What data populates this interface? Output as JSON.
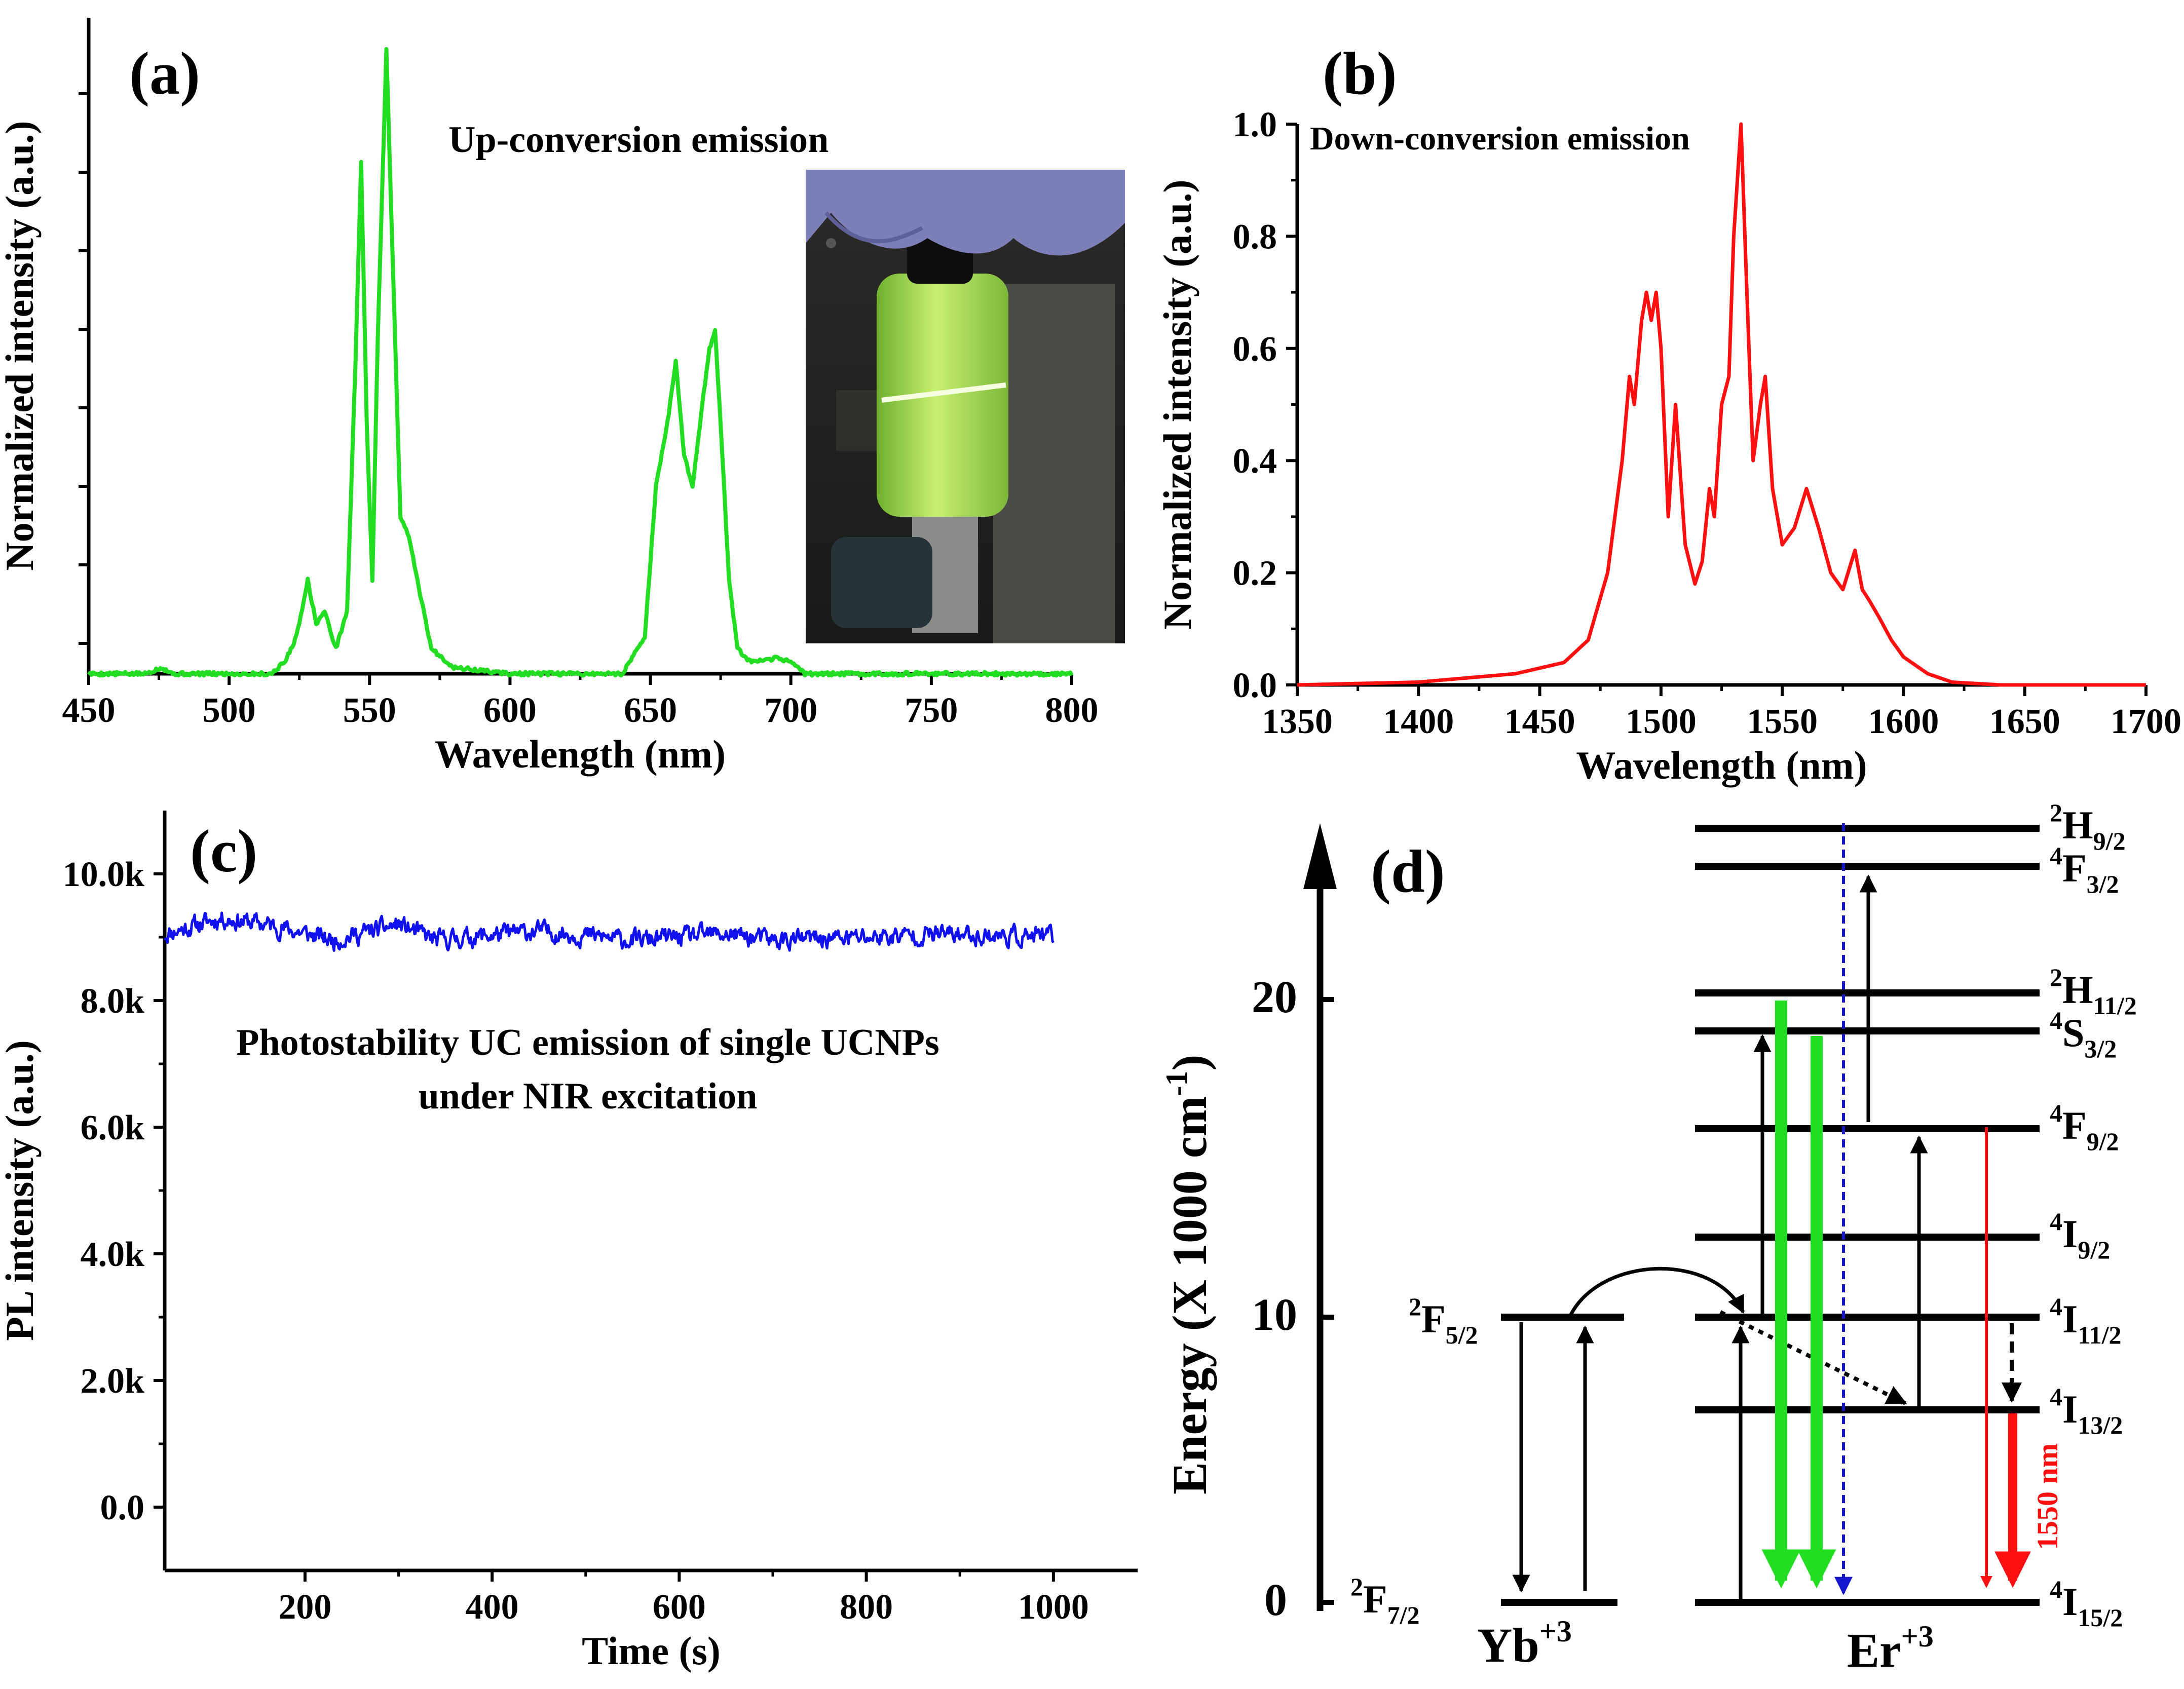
{
  "colors": {
    "green": "#22dd22",
    "red": "#ff1010",
    "blue": "#1111ee",
    "black": "#000000",
    "dark_blue_dash": "#1515cc"
  },
  "chart_data": [
    {
      "id": "a",
      "panel_label": "(a)",
      "type": "line",
      "title": "Up-conversion emission",
      "xlabel": "Wavelength (nm)",
      "ylabel": "Normalized intensity (a.u.)",
      "xlim": [
        450,
        800
      ],
      "ylim": [
        0,
        1.05
      ],
      "xticks": [
        450,
        500,
        550,
        600,
        650,
        700,
        750,
        800
      ],
      "yticks_unlabeled": true,
      "inset": "photo of a glowing green vial held by a gloved hand",
      "series": [
        {
          "name": "UC emission",
          "color": "#22dd22",
          "x": [
            450,
            470,
            476,
            480,
            500,
            515,
            520,
            524,
            528,
            531,
            534,
            538,
            542,
            545,
            547,
            549,
            551,
            553,
            556,
            558,
            561,
            564,
            567,
            572,
            580,
            600,
            640,
            648,
            652,
            656,
            659,
            662,
            665,
            669,
            671,
            673,
            675,
            678,
            681,
            685,
            690,
            695,
            700,
            705,
            720,
            800
          ],
          "y": [
            0.0,
            0.0,
            0.01,
            0.0,
            0.0,
            0.0,
            0.02,
            0.06,
            0.15,
            0.08,
            0.1,
            0.04,
            0.1,
            0.5,
            0.82,
            0.4,
            0.15,
            0.55,
            1.0,
            0.7,
            0.25,
            0.22,
            0.15,
            0.04,
            0.01,
            0.0,
            0.0,
            0.06,
            0.3,
            0.4,
            0.5,
            0.35,
            0.3,
            0.45,
            0.52,
            0.55,
            0.4,
            0.15,
            0.04,
            0.02,
            0.02,
            0.025,
            0.02,
            0.0,
            0.0,
            0.0
          ]
        }
      ]
    },
    {
      "id": "b",
      "panel_label": "(b)",
      "type": "line",
      "title": "Down-conversion emission",
      "xlabel": "Wavelength (nm)",
      "ylabel": "Normalized intensity (a.u.)",
      "xlim": [
        1350,
        1700
      ],
      "ylim": [
        0,
        1.0
      ],
      "xticks": [
        1350,
        1400,
        1450,
        1500,
        1550,
        1600,
        1650,
        1700
      ],
      "yticks": [
        0.0,
        0.2,
        0.4,
        0.6,
        0.8,
        1.0
      ],
      "ytick_labels": [
        "0.0",
        "0.2",
        "0.4",
        "0.6",
        "0.8",
        "1.0"
      ],
      "series": [
        {
          "name": "DC emission",
          "color": "#ff1010",
          "x": [
            1350,
            1400,
            1440,
            1460,
            1470,
            1478,
            1484,
            1487,
            1489,
            1492,
            1494,
            1496,
            1498,
            1500,
            1503,
            1506,
            1510,
            1514,
            1517,
            1520,
            1522,
            1525,
            1528,
            1530,
            1533,
            1535,
            1538,
            1541,
            1543,
            1546,
            1550,
            1555,
            1560,
            1565,
            1570,
            1575,
            1580,
            1583,
            1586,
            1590,
            1595,
            1600,
            1610,
            1620,
            1640,
            1660,
            1700
          ],
          "y": [
            0.0,
            0.005,
            0.02,
            0.04,
            0.08,
            0.2,
            0.4,
            0.55,
            0.5,
            0.65,
            0.7,
            0.65,
            0.7,
            0.6,
            0.3,
            0.5,
            0.25,
            0.18,
            0.22,
            0.35,
            0.3,
            0.5,
            0.55,
            0.8,
            1.0,
            0.75,
            0.4,
            0.5,
            0.55,
            0.35,
            0.25,
            0.28,
            0.35,
            0.28,
            0.2,
            0.17,
            0.24,
            0.17,
            0.15,
            0.12,
            0.08,
            0.05,
            0.02,
            0.005,
            0.0,
            0.0,
            0.0
          ]
        }
      ]
    },
    {
      "id": "c",
      "panel_label": "(c)",
      "type": "line",
      "title_lines": [
        "Photostability UC emission of single UCNPs",
        "under NIR excitation"
      ],
      "xlabel": "Time (s)",
      "ylabel": "PL intensity (a.u.)",
      "xlim": [
        50,
        1090
      ],
      "ylim": [
        -1000,
        11000
      ],
      "xticks": [
        200,
        400,
        600,
        800,
        1000
      ],
      "yticks": [
        0,
        2000,
        4000,
        6000,
        8000,
        10000
      ],
      "ytick_labels": [
        "0.0",
        "2.0k",
        "4.0k",
        "6.0k",
        "8.0k",
        "10.0k"
      ],
      "series": [
        {
          "name": "PL intensity",
          "color": "#1111ee",
          "t_start": 50,
          "t_end": 1000,
          "baseline": [
            [
              50,
              9050
            ],
            [
              110,
              9300
            ],
            [
              160,
              9200
            ],
            [
              230,
              8950
            ],
            [
              300,
              9200
            ],
            [
              340,
              8950
            ],
            [
              450,
              9100
            ],
            [
              550,
              8950
            ],
            [
              650,
              9050
            ],
            [
              700,
              8950
            ],
            [
              800,
              9000
            ],
            [
              880,
              9050
            ],
            [
              1000,
              9000
            ]
          ],
          "noise_amplitude": 120,
          "noise_seed": 11
        }
      ]
    }
  ],
  "diagram": {
    "panel_label": "(d)",
    "ylabel": "Energy (X 1000 cm",
    "ylabel_sup": "-1",
    "ylabel_close": ")",
    "yticks": [
      "0",
      "10",
      "20"
    ],
    "wavelength_label": "1550 nm",
    "ions": {
      "yb": "Yb",
      "yb_charge": "+3",
      "er": "Er",
      "er_charge": "+3"
    },
    "yb_levels": [
      {
        "pre": "2",
        "main": "F",
        "sub": "5/2",
        "energy": 10.2
      },
      {
        "pre": "2",
        "main": "F",
        "sub": "7/2",
        "energy": 0
      }
    ],
    "er_levels": [
      {
        "pre": "2",
        "main": "H",
        "sub": "9/2",
        "energy": 24.5
      },
      {
        "pre": "4",
        "main": "F",
        "sub": "3/2",
        "energy": 23.3
      },
      {
        "pre": "2",
        "main": "H",
        "sub": "11/2",
        "energy": 19.2
      },
      {
        "pre": "4",
        "main": "S",
        "sub": "3/2",
        "energy": 18.1
      },
      {
        "pre": "4",
        "main": "F",
        "sub": "9/2",
        "energy": 15.2
      },
      {
        "pre": "4",
        "main": "I",
        "sub": "9/2",
        "energy": 12.3
      },
      {
        "pre": "4",
        "main": "I",
        "sub": "11/2",
        "energy": 10.2
      },
      {
        "pre": "4",
        "main": "I",
        "sub": "13/2",
        "energy": 6.4
      },
      {
        "pre": "4",
        "main": "I",
        "sub": "15/2",
        "energy": 0
      }
    ]
  }
}
